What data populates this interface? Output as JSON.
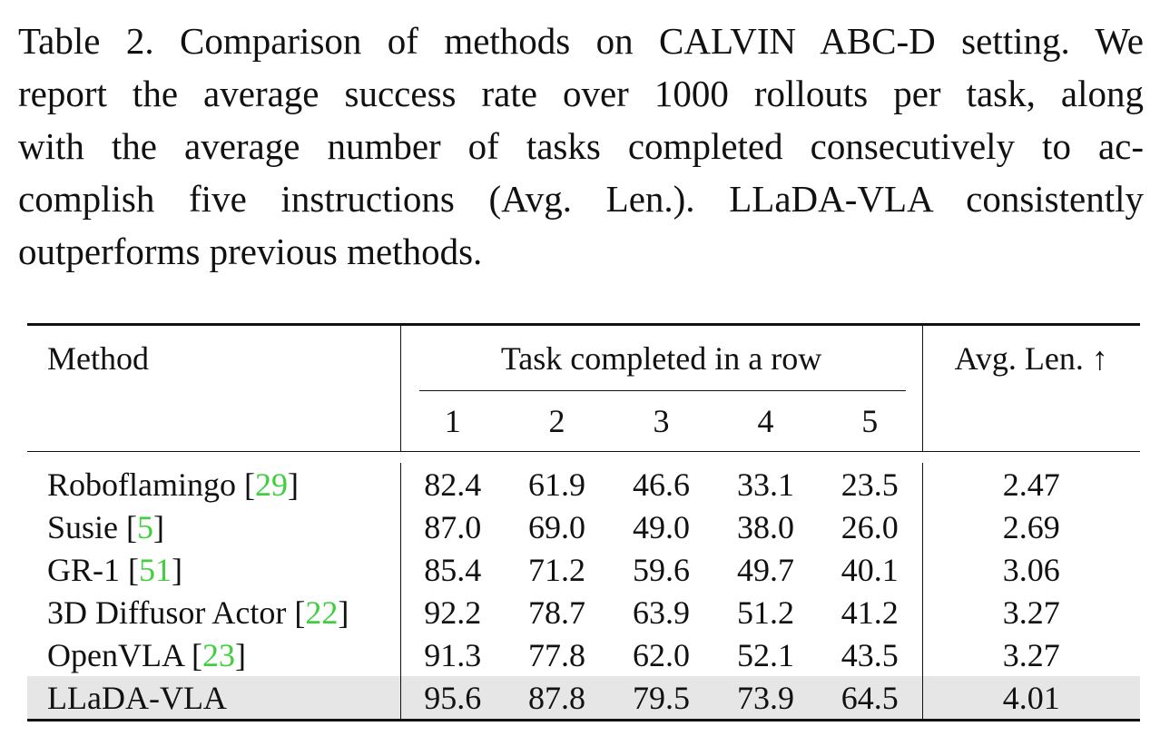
{
  "caption": {
    "line1": "Table 2. Comparison of methods on CALVIN ABC-D setting. We",
    "line2": "report the average success rate over 1000 rollouts per task, along",
    "line3": "with the average number of tasks completed consecutively to ac-",
    "line4": "complish five instructions (Avg. Len.). LLaDA-VLA consistently",
    "line5": "outperforms previous methods."
  },
  "table": {
    "header": {
      "method": "Method",
      "group": "Task completed in a row",
      "avg": "Avg. Len. ↑",
      "subcols": [
        "1",
        "2",
        "3",
        "4",
        "5"
      ]
    },
    "rows": [
      {
        "name": "Roboflamingo",
        "cite": "29",
        "values": [
          "82.4",
          "61.9",
          "46.6",
          "33.1",
          "23.5"
        ],
        "avg": "2.47"
      },
      {
        "name": "Susie",
        "cite": "5",
        "values": [
          "87.0",
          "69.0",
          "49.0",
          "38.0",
          "26.0"
        ],
        "avg": "2.69"
      },
      {
        "name": "GR-1",
        "cite": "51",
        "values": [
          "85.4",
          "71.2",
          "59.6",
          "49.7",
          "40.1"
        ],
        "avg": "3.06"
      },
      {
        "name": "3D Diffusor Actor",
        "cite": "22",
        "values": [
          "92.2",
          "78.7",
          "63.9",
          "51.2",
          "41.2"
        ],
        "avg": "3.27"
      },
      {
        "name": "OpenVLA",
        "cite": "23",
        "values": [
          "91.3",
          "77.8",
          "62.0",
          "52.1",
          "43.5"
        ],
        "avg": "3.27"
      },
      {
        "name": "LLaDA-VLA",
        "cite": "",
        "values": [
          "95.6",
          "87.8",
          "79.5",
          "73.9",
          "64.5"
        ],
        "avg": "4.01"
      }
    ],
    "highlight_row": "LLaDA-VLA",
    "colors": {
      "citation": "#3fcf3f",
      "highlight_bg": "#e6e6e6"
    }
  }
}
